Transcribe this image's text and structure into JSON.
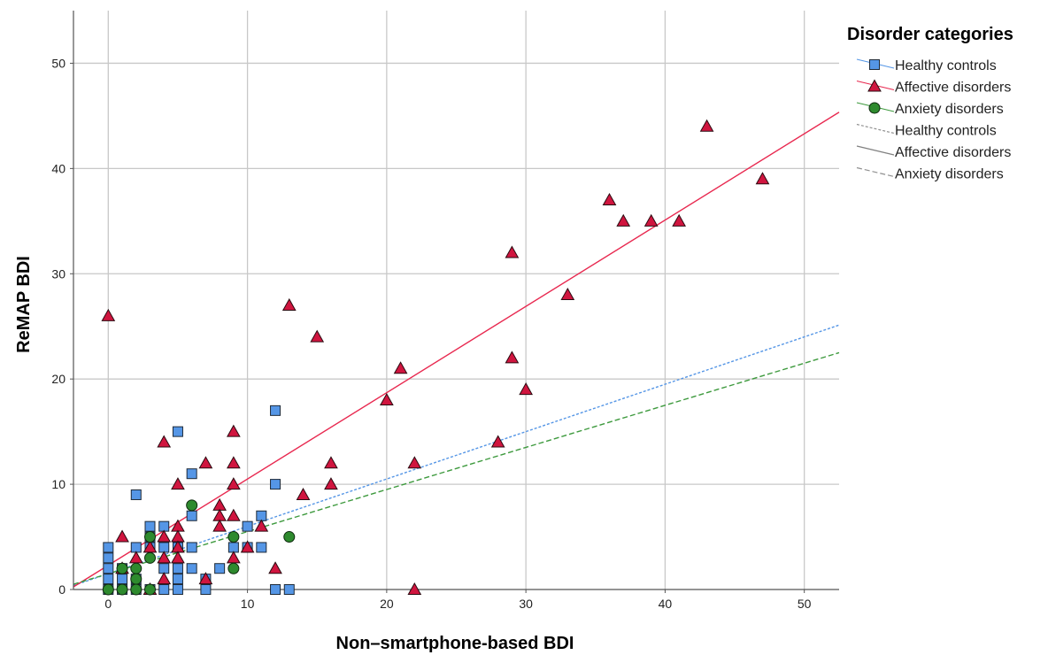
{
  "chart_data": {
    "type": "scatter",
    "xlabel": "Non–smartphone-based BDI",
    "ylabel": "ReMAP BDI",
    "xlim": [
      -2.5,
      52.5
    ],
    "ylim": [
      0,
      55
    ],
    "xticks": [
      0,
      10,
      20,
      30,
      40,
      50
    ],
    "yticks": [
      0,
      10,
      20,
      30,
      40,
      50
    ],
    "grid": true,
    "legend": {
      "title": "Disorder categories",
      "placement": "top-right",
      "entries": [
        {
          "label": "Healthy controls",
          "kind": "marker",
          "series": 0
        },
        {
          "label": "Affective disorders",
          "kind": "marker",
          "series": 1
        },
        {
          "label": "Anxiety disorders",
          "kind": "marker",
          "series": 2
        },
        {
          "label": "Healthy controls",
          "kind": "line",
          "series": 0
        },
        {
          "label": "Affective disorders",
          "kind": "line",
          "series": 1
        },
        {
          "label": "Anxiety disorders",
          "kind": "line",
          "series": 2
        }
      ]
    },
    "series": [
      {
        "name": "Healthy controls",
        "marker": "square",
        "color": "#5596e6",
        "line_color": "#5596e6",
        "line_style": "dotted",
        "fit": {
          "slope": 0.45,
          "intercept": 1.5
        },
        "points": [
          [
            0,
            4
          ],
          [
            0,
            3
          ],
          [
            0,
            2
          ],
          [
            0,
            1
          ],
          [
            0,
            0
          ],
          [
            1,
            2
          ],
          [
            1,
            1
          ],
          [
            1,
            0
          ],
          [
            2,
            9
          ],
          [
            2,
            4
          ],
          [
            2,
            1
          ],
          [
            2,
            0
          ],
          [
            3,
            6
          ],
          [
            3,
            5
          ],
          [
            3,
            4
          ],
          [
            3,
            0
          ],
          [
            4,
            6
          ],
          [
            4,
            4
          ],
          [
            4,
            2
          ],
          [
            4,
            0
          ],
          [
            5,
            15
          ],
          [
            5,
            4
          ],
          [
            5,
            2
          ],
          [
            5,
            1
          ],
          [
            5,
            0
          ],
          [
            6,
            11
          ],
          [
            6,
            7
          ],
          [
            6,
            4
          ],
          [
            6,
            2
          ],
          [
            7,
            1
          ],
          [
            7,
            0
          ],
          [
            8,
            2
          ],
          [
            9,
            4
          ],
          [
            10,
            6
          ],
          [
            10,
            4
          ],
          [
            11,
            7
          ],
          [
            11,
            4
          ],
          [
            12,
            17
          ],
          [
            12,
            10
          ],
          [
            12,
            0
          ],
          [
            13,
            0
          ]
        ]
      },
      {
        "name": "Affective disorders",
        "marker": "triangle",
        "color": "#d0153f",
        "line_color": "#e8284f",
        "line_style": "solid",
        "fit": {
          "slope": 0.82,
          "intercept": 2.3
        },
        "points": [
          [
            0,
            26
          ],
          [
            1,
            5
          ],
          [
            1,
            2
          ],
          [
            2,
            3
          ],
          [
            3,
            4
          ],
          [
            3,
            0
          ],
          [
            4,
            14
          ],
          [
            4,
            5
          ],
          [
            4,
            3
          ],
          [
            4,
            1
          ],
          [
            5,
            10
          ],
          [
            5,
            6
          ],
          [
            5,
            5
          ],
          [
            5,
            4
          ],
          [
            5,
            3
          ],
          [
            7,
            12
          ],
          [
            7,
            1
          ],
          [
            8,
            8
          ],
          [
            8,
            7
          ],
          [
            8,
            6
          ],
          [
            9,
            15
          ],
          [
            9,
            12
          ],
          [
            9,
            10
          ],
          [
            9,
            7
          ],
          [
            9,
            3
          ],
          [
            10,
            4
          ],
          [
            11,
            6
          ],
          [
            12,
            2
          ],
          [
            13,
            27
          ],
          [
            14,
            9
          ],
          [
            15,
            24
          ],
          [
            16,
            12
          ],
          [
            16,
            10
          ],
          [
            20,
            18
          ],
          [
            21,
            21
          ],
          [
            22,
            12
          ],
          [
            22,
            0
          ],
          [
            28,
            14
          ],
          [
            29,
            32
          ],
          [
            29,
            22
          ],
          [
            30,
            19
          ],
          [
            33,
            28
          ],
          [
            36,
            37
          ],
          [
            37,
            35
          ],
          [
            39,
            35
          ],
          [
            41,
            35
          ],
          [
            43,
            44
          ],
          [
            47,
            39
          ]
        ]
      },
      {
        "name": "Anxiety disorders",
        "marker": "circle",
        "color": "#2e8a2e",
        "line_color": "#3e9a3e",
        "line_style": "dashed",
        "fit": {
          "slope": 0.4,
          "intercept": 1.5
        },
        "points": [
          [
            0,
            0
          ],
          [
            1,
            0
          ],
          [
            1,
            2
          ],
          [
            2,
            2
          ],
          [
            2,
            1
          ],
          [
            2,
            0
          ],
          [
            3,
            5
          ],
          [
            3,
            3
          ],
          [
            3,
            0
          ],
          [
            6,
            8
          ],
          [
            9,
            5
          ],
          [
            9,
            2
          ],
          [
            13,
            5
          ]
        ]
      }
    ]
  }
}
